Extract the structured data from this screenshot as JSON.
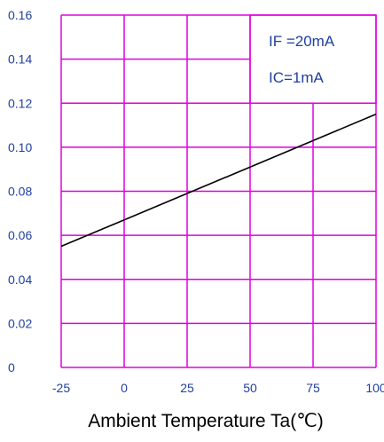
{
  "chart_data": {
    "type": "line",
    "title": "",
    "xlabel": "Ambient Temperature Ta(℃)",
    "ylabel": "",
    "xlim": [
      -25,
      100
    ],
    "ylim": [
      0,
      0.16
    ],
    "x_ticks": [
      "-25",
      "0",
      "25",
      "50",
      "75",
      "100"
    ],
    "x_tick_values": [
      -25,
      0,
      25,
      50,
      75,
      100
    ],
    "y_ticks": [
      "0",
      "0.02",
      "0.04",
      "0.06",
      "0.08",
      "0.10",
      "0.12",
      "0.14",
      "0.16"
    ],
    "y_tick_values": [
      0,
      0.02,
      0.04,
      0.06,
      0.08,
      0.1,
      0.12,
      0.14,
      0.16
    ],
    "grid": true,
    "series": [
      {
        "x": [
          -25,
          100
        ],
        "y": [
          0.055,
          0.115
        ]
      }
    ],
    "annotations": [
      "IF =20mA",
      "IC=1mA"
    ],
    "colors": {
      "grid": "#e000e0",
      "line": "#000000",
      "tick_text": "#1f3f9f",
      "label_text": "#000000"
    }
  }
}
